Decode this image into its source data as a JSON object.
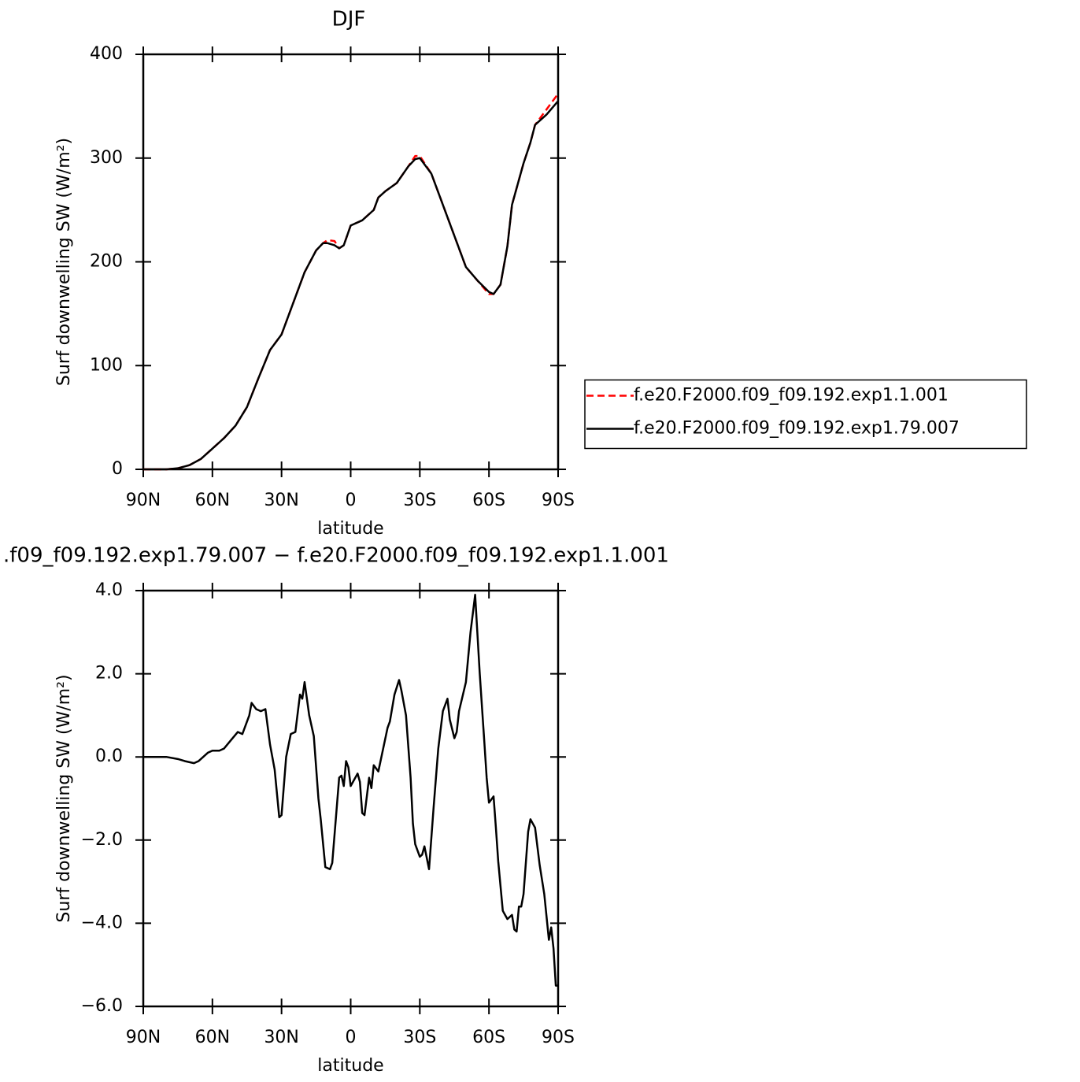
{
  "chart_data": [
    {
      "type": "line",
      "title": "DJF",
      "xlabel": "latitude",
      "ylabel": "Surf downwelling SW (W/m²)",
      "xlim": [
        90,
        -90
      ],
      "xticks": [
        {
          "value": 90,
          "label": "90N"
        },
        {
          "value": 60,
          "label": "60N"
        },
        {
          "value": 30,
          "label": "30N"
        },
        0,
        {
          "value": -30,
          "label": "30S"
        },
        {
          "value": -60,
          "label": "60S"
        },
        {
          "value": -90,
          "label": "90S"
        }
      ],
      "ylim": [
        0,
        400
      ],
      "yticks": [
        0,
        100,
        200,
        300,
        400
      ],
      "legend": "right",
      "x": [
        90,
        80,
        75,
        70,
        65,
        60,
        57,
        55,
        50,
        45,
        40,
        35,
        30,
        25,
        20,
        15,
        12,
        10,
        7,
        5,
        3,
        0,
        -5,
        -10,
        -12,
        -15,
        -20,
        -25,
        -28,
        -30,
        -35,
        -40,
        -45,
        -50,
        -55,
        -60,
        -62,
        -65,
        -68,
        -70,
        -75,
        -78,
        -80,
        -85,
        -90
      ],
      "series": [
        {
          "name": "f.e20.F2000.f09_f09.192.exp1.1.001",
          "color": "#ff0000",
          "style": "dashed",
          "values": [
            0,
            0,
            1,
            4,
            10,
            20,
            26,
            30,
            42,
            60,
            88,
            115,
            130,
            160,
            190,
            211,
            218,
            221,
            220,
            213,
            216,
            235,
            240,
            250,
            262,
            268,
            276,
            292,
            302,
            302,
            285,
            255,
            225,
            195,
            182,
            169,
            169,
            178,
            215,
            255,
            295,
            315,
            332,
            347,
            362
          ]
        },
        {
          "name": "f.e20.F2000.f09_f09.192.exp1.79.007",
          "color": "#000000",
          "style": "solid",
          "values": [
            0,
            0,
            1,
            4,
            10,
            20,
            26,
            30,
            42,
            60,
            88,
            115,
            130,
            160,
            190,
            211,
            218,
            218,
            216,
            213,
            216,
            235,
            240,
            250,
            262,
            268,
            276,
            292,
            299,
            300,
            285,
            255,
            225,
            195,
            182,
            171,
            169,
            178,
            215,
            255,
            295,
            315,
            332,
            342,
            355
          ]
        }
      ]
    },
    {
      "type": "line",
      "title": ".f09_f09.192.exp1.79.007 − f.e20.F2000.f09_f09.192.exp1.1.001",
      "xlabel": "latitude",
      "ylabel": "Surf downwelling SW (W/m²)",
      "xlim": [
        90,
        -90
      ],
      "xticks": [
        {
          "value": 90,
          "label": "90N"
        },
        {
          "value": 60,
          "label": "60N"
        },
        {
          "value": 30,
          "label": "30N"
        },
        0,
        {
          "value": -30,
          "label": "30S"
        },
        {
          "value": -60,
          "label": "60S"
        },
        {
          "value": -90,
          "label": "90S"
        }
      ],
      "ylim": [
        -6,
        4
      ],
      "yticks": [
        {
          "value": -6,
          "label": "−6.0"
        },
        {
          "value": -4,
          "label": "−4.0"
        },
        {
          "value": -2,
          "label": "−2.0"
        },
        {
          "value": 0,
          "label": "0.0"
        },
        {
          "value": 2,
          "label": "2.0"
        },
        {
          "value": 4,
          "label": "4.0"
        }
      ],
      "x": [
        90,
        80,
        75,
        72,
        68,
        66,
        62,
        60,
        57,
        55,
        52,
        49,
        47,
        44,
        43,
        41,
        39,
        37,
        35,
        33,
        31,
        30,
        28,
        26,
        24,
        22,
        21,
        20,
        18,
        16,
        14,
        13,
        11,
        9,
        8,
        5,
        4,
        3,
        2,
        1,
        0,
        -1,
        -3,
        -4,
        -5,
        -6,
        -8,
        -9,
        -10,
        -12,
        -16,
        -17,
        -19,
        -21,
        -22,
        -24,
        -26,
        -27,
        -28,
        -30,
        -31,
        -32,
        -34,
        -36,
        -38,
        -40,
        -42,
        -43,
        -45,
        -46,
        -47,
        -50,
        -52,
        -54,
        -56,
        -58,
        -59,
        -60,
        -62,
        -63,
        -64,
        -66,
        -67,
        -68,
        -70,
        -71,
        -72,
        -73,
        -74,
        -75,
        -77,
        -78,
        -79,
        -80,
        -82,
        -84,
        -86,
        -87,
        -88,
        -89,
        -90
      ],
      "series": [
        {
          "color": "#000000",
          "style": "solid",
          "values": [
            0,
            0,
            -0.05,
            -0.1,
            -0.15,
            -0.1,
            0.1,
            0.15,
            0.15,
            0.2,
            0.4,
            0.6,
            0.55,
            1.0,
            1.3,
            1.15,
            1.1,
            1.15,
            0.3,
            -0.3,
            -1.45,
            -1.4,
            0.0,
            0.55,
            0.6,
            1.5,
            1.4,
            1.8,
            1.0,
            0.5,
            -1.0,
            -1.5,
            -2.65,
            -2.7,
            -2.55,
            -0.5,
            -0.45,
            -0.7,
            -0.1,
            -0.25,
            -0.7,
            -0.6,
            -0.4,
            -0.6,
            -1.35,
            -1.4,
            -0.5,
            -0.75,
            -0.2,
            -0.35,
            0.7,
            0.85,
            1.5,
            1.85,
            1.6,
            1.0,
            -0.5,
            -1.6,
            -2.1,
            -2.4,
            -2.35,
            -2.15,
            -2.7,
            -1.2,
            0.2,
            1.1,
            1.4,
            0.9,
            0.45,
            0.6,
            1.1,
            1.8,
            3.0,
            3.9,
            2.0,
            0.35,
            -0.5,
            -1.1,
            -0.95,
            -1.7,
            -2.5,
            -3.7,
            -3.8,
            -3.9,
            -3.8,
            -4.15,
            -4.2,
            -3.6,
            -3.6,
            -3.3,
            -1.8,
            -1.5,
            -1.6,
            -1.7,
            -2.6,
            -3.3,
            -4.4,
            -4.1,
            -4.6,
            -5.5,
            -5.5
          ]
        }
      ]
    }
  ]
}
